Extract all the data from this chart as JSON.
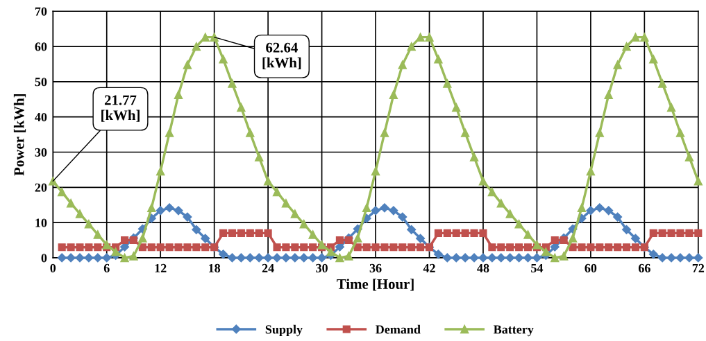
{
  "chart_data": {
    "type": "line",
    "xlabel": "Time [Hour]",
    "ylabel": "Power [kWh]",
    "xlim": [
      0,
      72
    ],
    "ylim": [
      0,
      70
    ],
    "xticks": [
      0,
      6,
      12,
      18,
      24,
      30,
      36,
      42,
      48,
      54,
      60,
      66,
      72
    ],
    "yticks": [
      0,
      10,
      20,
      30,
      40,
      50,
      60,
      70
    ],
    "grid": true,
    "legend": "bottom",
    "series": [
      {
        "name": "Supply",
        "color": "#4f81bd",
        "marker": "diamond",
        "x": [
          1,
          2,
          3,
          4,
          5,
          6,
          7,
          8,
          9,
          10,
          11,
          12,
          13,
          14,
          15,
          16,
          17,
          18,
          19,
          20,
          21,
          22,
          23,
          24,
          25,
          26,
          27,
          28,
          29,
          30,
          31,
          32,
          33,
          34,
          35,
          36,
          37,
          38,
          39,
          40,
          41,
          42,
          43,
          44,
          45,
          46,
          47,
          48,
          49,
          50,
          51,
          52,
          53,
          54,
          55,
          56,
          57,
          58,
          59,
          60,
          61,
          62,
          63,
          64,
          65,
          66,
          67,
          68,
          69,
          70,
          71,
          72
        ],
        "values": [
          0,
          0,
          0,
          0,
          0,
          0,
          0.7,
          3.1,
          5.6,
          8.2,
          11.2,
          13.4,
          14.2,
          13.4,
          11.6,
          8.0,
          5.5,
          3.0,
          1.0,
          0,
          0,
          0,
          0,
          0,
          0,
          0,
          0,
          0,
          0,
          0,
          0.7,
          3.1,
          5.6,
          8.2,
          11.2,
          13.4,
          14.2,
          13.4,
          11.6,
          8.0,
          5.5,
          3.0,
          1.0,
          0,
          0,
          0,
          0,
          0,
          0,
          0,
          0,
          0,
          0,
          0,
          0.7,
          3.1,
          5.6,
          8.2,
          11.2,
          13.4,
          14.2,
          13.4,
          11.6,
          8.0,
          5.5,
          3.0,
          1.0,
          0,
          0,
          0,
          0,
          0
        ]
      },
      {
        "name": "Demand",
        "color": "#c0504d",
        "marker": "square",
        "x": [
          1,
          2,
          3,
          4,
          5,
          6,
          7,
          8,
          9,
          10,
          11,
          12,
          13,
          14,
          15,
          16,
          17,
          18,
          19,
          20,
          21,
          22,
          23,
          24,
          25,
          26,
          27,
          28,
          29,
          30,
          31,
          32,
          33,
          34,
          35,
          36,
          37,
          38,
          39,
          40,
          41,
          42,
          43,
          44,
          45,
          46,
          47,
          48,
          49,
          50,
          51,
          52,
          53,
          54,
          55,
          56,
          57,
          58,
          59,
          60,
          61,
          62,
          63,
          64,
          65,
          66,
          67,
          68,
          69,
          70,
          71,
          72
        ],
        "values": [
          3,
          3,
          3,
          3,
          3,
          3,
          3,
          5,
          5,
          3,
          3,
          3,
          3,
          3,
          3,
          3,
          3,
          3,
          7,
          7,
          7,
          7,
          7,
          7,
          3,
          3,
          3,
          3,
          3,
          3,
          3,
          5,
          5,
          3,
          3,
          3,
          3,
          3,
          3,
          3,
          3,
          3,
          7,
          7,
          7,
          7,
          7,
          7,
          3,
          3,
          3,
          3,
          3,
          3,
          3,
          5,
          5,
          3,
          3,
          3,
          3,
          3,
          3,
          3,
          3,
          3,
          7,
          7,
          7,
          7,
          7,
          7
        ]
      },
      {
        "name": "Battery",
        "color": "#9bbb59",
        "marker": "triangle",
        "x": [
          0,
          1,
          2,
          3,
          4,
          5,
          6,
          7,
          8,
          9,
          10,
          11,
          12,
          13,
          14,
          15,
          16,
          17,
          18,
          19,
          20,
          21,
          22,
          23,
          24,
          25,
          26,
          27,
          28,
          29,
          30,
          31,
          32,
          33,
          34,
          35,
          36,
          37,
          38,
          39,
          40,
          41,
          42,
          43,
          44,
          45,
          46,
          47,
          48,
          49,
          50,
          51,
          52,
          53,
          54,
          55,
          56,
          57,
          58,
          59,
          60,
          61,
          62,
          63,
          64,
          65,
          66,
          67,
          68,
          69,
          70,
          71,
          72
        ],
        "values": [
          21.77,
          18.7,
          15.5,
          12.5,
          9.6,
          6.6,
          3.7,
          1.7,
          0,
          0.5,
          5.6,
          14.2,
          24.6,
          35.5,
          46.3,
          54.8,
          60.0,
          62.64,
          62.64,
          56.4,
          49.5,
          42.7,
          35.5,
          28.6,
          21.77,
          18.7,
          15.5,
          12.5,
          9.6,
          6.6,
          3.7,
          1.7,
          0,
          0.5,
          5.6,
          14.2,
          24.6,
          35.5,
          46.3,
          54.8,
          60.0,
          62.64,
          62.64,
          56.4,
          49.5,
          42.7,
          35.5,
          28.6,
          21.77,
          18.7,
          15.5,
          12.5,
          9.6,
          6.6,
          3.7,
          1.7,
          0,
          0.5,
          5.6,
          14.2,
          24.6,
          35.5,
          46.3,
          54.8,
          60.0,
          62.64,
          62.64,
          56.4,
          49.5,
          42.7,
          35.5,
          28.6,
          21.77
        ]
      }
    ],
    "annotations": [
      {
        "text": "21.77\n[kWh]",
        "x": 0,
        "y": 21.77
      },
      {
        "text": "62.64\n[kWh]",
        "x": 18,
        "y": 62.64
      }
    ]
  }
}
